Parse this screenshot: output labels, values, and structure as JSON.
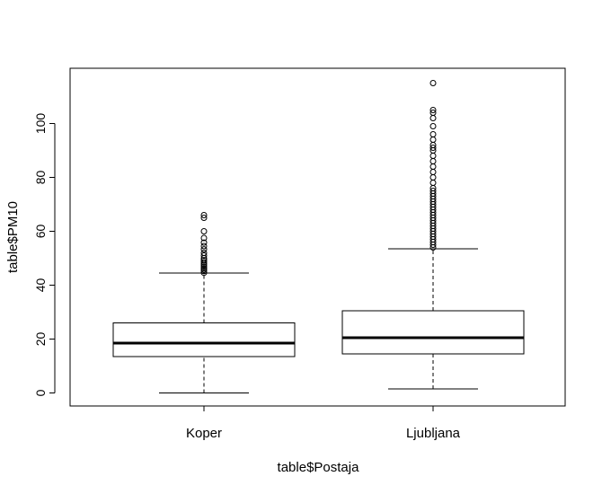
{
  "chart_data": {
    "type": "boxplot",
    "xlabel": "table$Postaja",
    "ylabel": "table$PM10",
    "ylim": [
      -5,
      118
    ],
    "yticks": [
      0,
      20,
      40,
      60,
      80,
      100
    ],
    "grid": false,
    "categories": [
      "Koper",
      "Ljubljana"
    ],
    "boxes": [
      {
        "name": "Koper",
        "whisker_low": 0,
        "q1": 13.5,
        "median": 18.5,
        "q3": 26,
        "whisker_high": 44.5,
        "outliers": [
          44.6,
          45.2,
          45.8,
          46.3,
          46.9,
          47.5,
          48,
          48.6,
          49.3,
          50,
          51,
          52,
          53.3,
          54.5,
          55.8,
          57.5,
          60,
          65,
          66
        ]
      },
      {
        "name": "Ljubljana",
        "whisker_low": 1.5,
        "q1": 14.5,
        "median": 20.5,
        "q3": 30.5,
        "whisker_high": 53.5,
        "outliers": [
          54,
          55,
          56,
          57,
          58,
          59,
          60,
          61,
          62,
          63,
          64,
          65,
          66,
          67,
          68,
          69,
          70,
          71,
          72,
          73,
          74,
          75,
          76,
          78,
          80,
          82,
          84,
          86,
          88,
          90,
          91,
          92,
          94,
          96,
          99,
          102,
          104,
          105,
          115
        ]
      }
    ]
  }
}
